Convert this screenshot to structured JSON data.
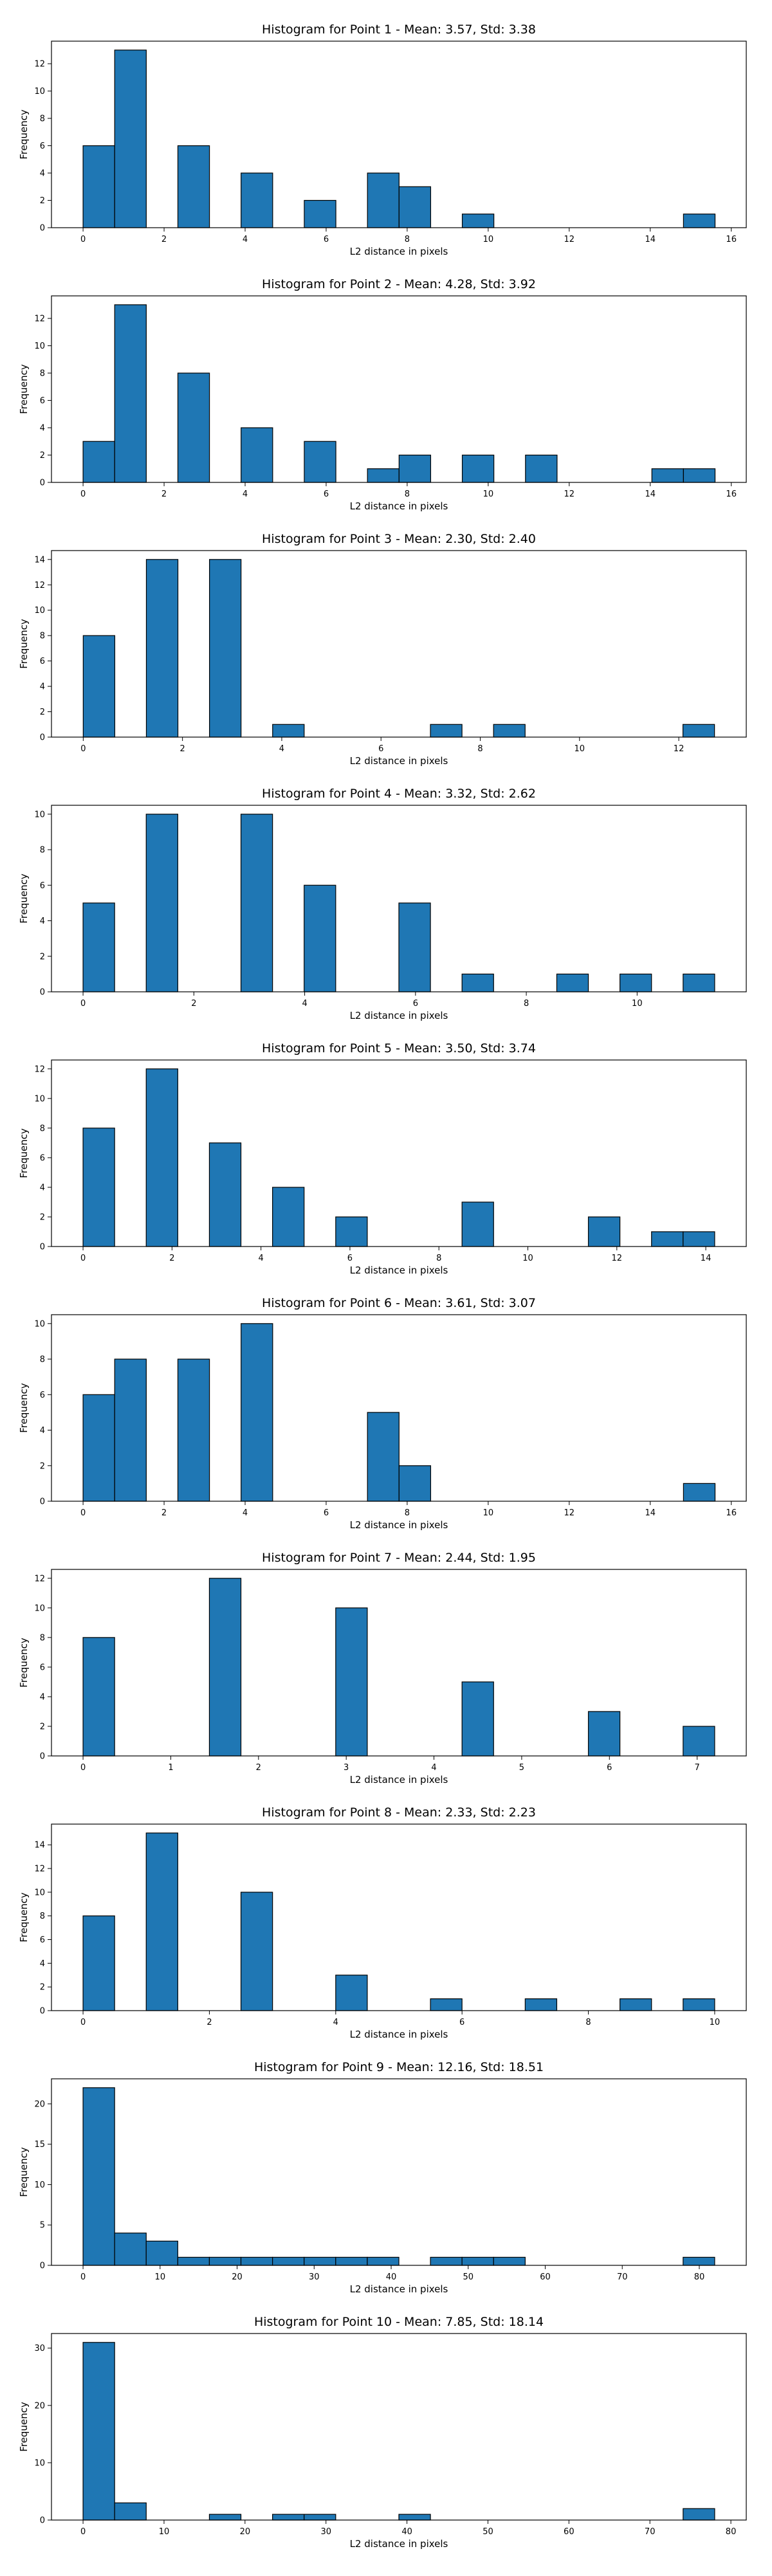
{
  "chart_data": [
    {
      "type": "bar",
      "title": "Histogram for Point 1 - Mean: 3.57, Std: 3.38",
      "xlabel": "L2 distance in pixels",
      "ylabel": "Frequency",
      "xlim": [
        -0.78,
        16.37
      ],
      "ylim": [
        0,
        13.65
      ],
      "xticks": [
        0,
        2,
        4,
        6,
        8,
        10,
        12,
        14,
        16
      ],
      "yticks": [
        0,
        2,
        4,
        6,
        8,
        10,
        12
      ],
      "grid": false,
      "bin_edges": [
        0.0,
        0.78,
        1.56,
        2.34,
        3.12,
        3.9,
        4.68,
        5.46,
        6.24,
        7.02,
        7.8,
        8.58,
        9.36,
        10.14,
        10.92,
        11.7,
        12.48,
        13.26,
        14.04,
        14.82,
        15.6
      ],
      "values": [
        6,
        13,
        0,
        6,
        0,
        4,
        0,
        2,
        0,
        4,
        3,
        0,
        1,
        0,
        0,
        0,
        0,
        0,
        0,
        1
      ]
    },
    {
      "type": "bar",
      "title": "Histogram for Point 2 - Mean: 4.28, Std: 3.92",
      "xlabel": "L2 distance in pixels",
      "ylabel": "Frequency",
      "xlim": [
        -0.78,
        16.37
      ],
      "ylim": [
        0,
        13.65
      ],
      "xticks": [
        0,
        2,
        4,
        6,
        8,
        10,
        12,
        14,
        16
      ],
      "yticks": [
        0,
        2,
        4,
        6,
        8,
        10,
        12
      ],
      "grid": false,
      "bin_edges": [
        0.0,
        0.78,
        1.56,
        2.34,
        3.12,
        3.9,
        4.68,
        5.46,
        6.24,
        7.02,
        7.8,
        8.58,
        9.36,
        10.14,
        10.92,
        11.7,
        12.48,
        13.26,
        14.04,
        14.82,
        15.6
      ],
      "values": [
        3,
        13,
        0,
        8,
        0,
        4,
        0,
        3,
        0,
        1,
        2,
        0,
        2,
        0,
        2,
        0,
        0,
        0,
        1,
        1
      ]
    },
    {
      "type": "bar",
      "title": "Histogram for Point 3 - Mean: 2.30, Std: 2.40",
      "xlabel": "L2 distance in pixels",
      "ylabel": "Frequency",
      "xlim": [
        -0.64,
        13.36
      ],
      "ylim": [
        0,
        14.7
      ],
      "xticks": [
        0,
        2,
        4,
        6,
        8,
        10,
        12
      ],
      "yticks": [
        0,
        2,
        4,
        6,
        8,
        10,
        12,
        14
      ],
      "grid": false,
      "bin_edges": [
        0.0,
        0.636,
        1.272,
        1.908,
        2.544,
        3.18,
        3.816,
        4.452,
        5.088,
        5.724,
        6.36,
        6.996,
        7.632,
        8.268,
        8.904,
        9.54,
        10.176,
        10.812,
        11.448,
        12.084,
        12.72
      ],
      "values": [
        8,
        0,
        14,
        0,
        14,
        0,
        1,
        0,
        0,
        0,
        0,
        1,
        0,
        1,
        0,
        0,
        0,
        0,
        0,
        1
      ]
    },
    {
      "type": "bar",
      "title": "Histogram for Point 4 - Mean: 3.32, Std: 2.62",
      "xlabel": "L2 distance in pixels",
      "ylabel": "Frequency",
      "xlim": [
        -0.57,
        11.97
      ],
      "ylim": [
        0,
        10.5
      ],
      "xticks": [
        0,
        2,
        4,
        6,
        8,
        10
      ],
      "yticks": [
        0,
        2,
        4,
        6,
        8,
        10
      ],
      "grid": false,
      "bin_edges": [
        0.0,
        0.57,
        1.14,
        1.71,
        2.28,
        2.85,
        3.42,
        3.99,
        4.56,
        5.13,
        5.7,
        6.27,
        6.84,
        7.41,
        7.98,
        8.55,
        9.12,
        9.69,
        10.26,
        10.83,
        11.4
      ],
      "values": [
        5,
        0,
        10,
        0,
        0,
        10,
        0,
        6,
        0,
        0,
        5,
        0,
        1,
        0,
        0,
        1,
        0,
        1,
        0,
        1
      ]
    },
    {
      "type": "bar",
      "title": "Histogram for Point 5 - Mean: 3.50, Std: 3.74",
      "xlabel": "L2 distance in pixels",
      "ylabel": "Frequency",
      "xlim": [
        -0.71,
        14.91
      ],
      "ylim": [
        0,
        12.6
      ],
      "xticks": [
        0,
        2,
        4,
        6,
        8,
        10,
        12,
        14
      ],
      "yticks": [
        0,
        2,
        4,
        6,
        8,
        10,
        12
      ],
      "grid": false,
      "bin_edges": [
        0.0,
        0.71,
        1.42,
        2.13,
        2.84,
        3.55,
        4.26,
        4.97,
        5.68,
        6.39,
        7.1,
        7.81,
        8.52,
        9.23,
        9.94,
        10.65,
        11.36,
        12.07,
        12.78,
        13.49,
        14.2
      ],
      "values": [
        8,
        0,
        12,
        0,
        7,
        0,
        4,
        0,
        2,
        0,
        0,
        0,
        3,
        0,
        0,
        0,
        2,
        0,
        1,
        1
      ]
    },
    {
      "type": "bar",
      "title": "Histogram for Point 6 - Mean: 3.61, Std: 3.07",
      "xlabel": "L2 distance in pixels",
      "ylabel": "Frequency",
      "xlim": [
        -0.78,
        16.37
      ],
      "ylim": [
        0,
        10.5
      ],
      "xticks": [
        0,
        2,
        4,
        6,
        8,
        10,
        12,
        14,
        16
      ],
      "yticks": [
        0,
        2,
        4,
        6,
        8,
        10
      ],
      "grid": false,
      "bin_edges": [
        0.0,
        0.78,
        1.56,
        2.34,
        3.12,
        3.9,
        4.68,
        5.46,
        6.24,
        7.02,
        7.8,
        8.58,
        9.36,
        10.14,
        10.92,
        11.7,
        12.48,
        13.26,
        14.04,
        14.82,
        15.6
      ],
      "values": [
        6,
        8,
        0,
        8,
        0,
        10,
        0,
        0,
        0,
        5,
        2,
        0,
        0,
        0,
        0,
        0,
        0,
        0,
        0,
        1
      ]
    },
    {
      "type": "bar",
      "title": "Histogram for Point 7 - Mean: 2.44, Std: 1.95",
      "xlabel": "L2 distance in pixels",
      "ylabel": "Frequency",
      "xlim": [
        -0.36,
        7.56
      ],
      "ylim": [
        0,
        12.6
      ],
      "xticks": [
        0,
        1,
        2,
        3,
        4,
        5,
        6,
        7
      ],
      "yticks": [
        0,
        2,
        4,
        6,
        8,
        10,
        12
      ],
      "grid": false,
      "bin_edges": [
        0.0,
        0.36,
        0.72,
        1.08,
        1.44,
        1.8,
        2.16,
        2.52,
        2.88,
        3.24,
        3.6,
        3.96,
        4.32,
        4.68,
        5.04,
        5.4,
        5.76,
        6.12,
        6.48,
        6.84,
        7.2
      ],
      "values": [
        8,
        0,
        0,
        0,
        12,
        0,
        0,
        0,
        10,
        0,
        0,
        0,
        5,
        0,
        0,
        0,
        3,
        0,
        0,
        2
      ]
    },
    {
      "type": "bar",
      "title": "Histogram for Point 8 - Mean: 2.33, Std: 2.23",
      "xlabel": "L2 distance in pixels",
      "ylabel": "Frequency",
      "xlim": [
        -0.5,
        10.5
      ],
      "ylim": [
        0,
        15.75
      ],
      "xticks": [
        0,
        2,
        4,
        6,
        8,
        10
      ],
      "yticks": [
        0,
        2,
        4,
        6,
        8,
        10,
        12,
        14
      ],
      "grid": false,
      "bin_edges": [
        0.0,
        0.5,
        1.0,
        1.5,
        2.0,
        2.5,
        3.0,
        3.5,
        4.0,
        4.5,
        5.0,
        5.5,
        6.0,
        6.5,
        7.0,
        7.5,
        8.0,
        8.5,
        9.0,
        9.5,
        10.0
      ],
      "values": [
        8,
        0,
        15,
        0,
        0,
        10,
        0,
        0,
        3,
        0,
        0,
        1,
        0,
        0,
        1,
        0,
        0,
        1,
        0,
        1
      ]
    },
    {
      "type": "bar",
      "title": "Histogram for Point 9 - Mean: 12.16, Std: 18.51",
      "xlabel": "L2 distance in pixels",
      "ylabel": "Frequency",
      "xlim": [
        -4.1,
        86.1
      ],
      "ylim": [
        0,
        23.1
      ],
      "xticks": [
        0,
        10,
        20,
        30,
        40,
        50,
        60,
        70,
        80
      ],
      "yticks": [
        0,
        5,
        10,
        15,
        20
      ],
      "grid": false,
      "bin_edges": [
        0.0,
        4.1,
        8.2,
        12.3,
        16.4,
        20.5,
        24.6,
        28.7,
        32.8,
        36.9,
        41.0,
        45.1,
        49.2,
        53.3,
        57.4,
        61.5,
        65.6,
        69.7,
        73.8,
        77.9,
        82.0
      ],
      "values": [
        22,
        4,
        3,
        1,
        1,
        1,
        1,
        1,
        1,
        1,
        0,
        1,
        1,
        1,
        0,
        0,
        0,
        0,
        0,
        1
      ]
    },
    {
      "type": "bar",
      "title": "Histogram for Point 10 - Mean: 7.85, Std: 18.14",
      "xlabel": "L2 distance in pixels",
      "ylabel": "Frequency",
      "xlim": [
        -3.9,
        81.9
      ],
      "ylim": [
        0,
        32.55
      ],
      "xticks": [
        0,
        10,
        20,
        30,
        40,
        50,
        60,
        70,
        80
      ],
      "yticks": [
        0,
        10,
        20,
        30
      ],
      "grid": false,
      "bin_edges": [
        0.0,
        3.9,
        7.8,
        11.7,
        15.6,
        19.5,
        23.4,
        27.3,
        31.2,
        35.1,
        39.0,
        42.9,
        46.8,
        50.7,
        54.6,
        58.5,
        62.4,
        66.3,
        70.2,
        74.1,
        78.0
      ],
      "values": [
        31,
        3,
        0,
        0,
        1,
        0,
        1,
        1,
        0,
        0,
        1,
        0,
        0,
        0,
        0,
        0,
        0,
        0,
        0,
        2
      ]
    }
  ],
  "colors": {
    "bar_fill": "#1f77b4",
    "bar_edge": "#000000",
    "axis": "#000000",
    "background": "#ffffff"
  }
}
